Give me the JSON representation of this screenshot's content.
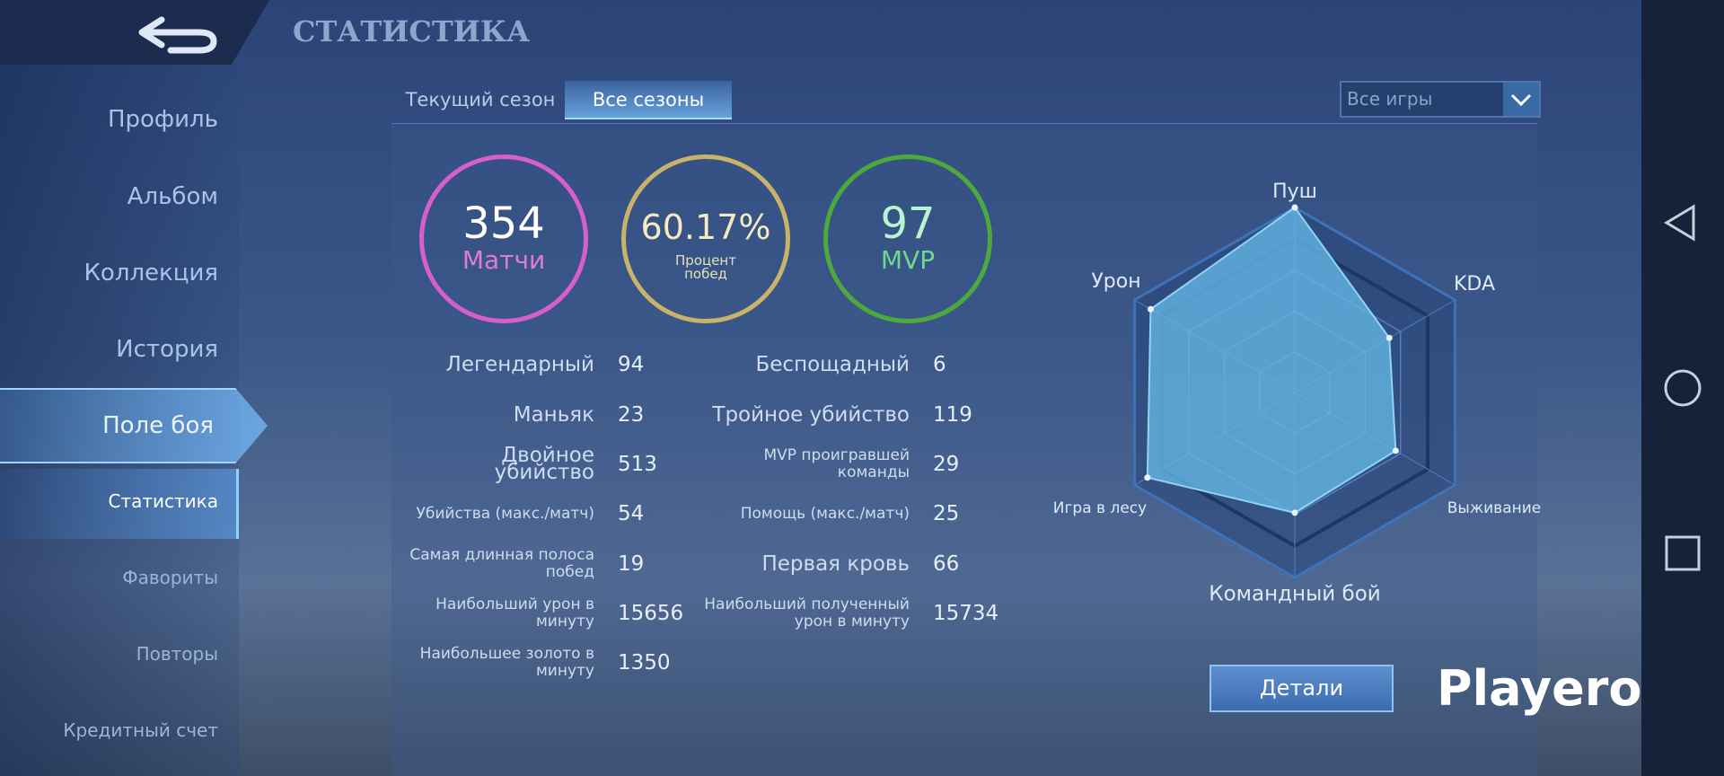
{
  "header": {
    "title": "СТАТИСТИКА"
  },
  "sidebar": {
    "items": [
      "Профиль",
      "Альбом",
      "Коллекция",
      "История",
      "Поле боя",
      "Статистика",
      "Фавориты",
      "Повторы",
      "Кредитный счет"
    ]
  },
  "tabs": [
    "Текущий сезон",
    "Все сезоны"
  ],
  "filter": "Все игры",
  "summary": [
    {
      "value": 354,
      "label": "Матчи"
    },
    {
      "value": "60.17%",
      "label": "Процент побед"
    },
    {
      "value": 97,
      "label": "MVP"
    }
  ],
  "stats": {
    "left": [
      {
        "label": "Легендарный",
        "value": 94
      },
      {
        "label": "Маньяк",
        "value": 23
      },
      {
        "label": "Двойное убийство",
        "value": 513
      },
      {
        "label": "Убийства (макс./матч)",
        "value": 54
      },
      {
        "label": "Самая длинная полоса побед",
        "value": 19
      },
      {
        "label": "Наибольший урон в минуту",
        "value": 15656
      },
      {
        "label": "Наибольшее золото в минуту",
        "value": 1350
      }
    ],
    "right": [
      {
        "label": "Беспощадный",
        "value": 6
      },
      {
        "label": "Тройное убийство",
        "value": 119
      },
      {
        "label": "MVP проигравшей команды",
        "value": 29
      },
      {
        "label": "Помощь (макс./матч)",
        "value": 25
      },
      {
        "label": "Первая кровь",
        "value": 66
      },
      {
        "label": "Наибольший полученный урон в минуту",
        "value": 15734
      }
    ]
  },
  "radar": {
    "axes": [
      "Пуш",
      "KDA",
      "Выживание",
      "Командный бой",
      "Игра в лесу",
      "Урон"
    ],
    "values": [
      100,
      59,
      63,
      65,
      92,
      90
    ],
    "rlim": [
      0,
      100
    ]
  },
  "button": "Детали",
  "watermark": "Playerok"
}
